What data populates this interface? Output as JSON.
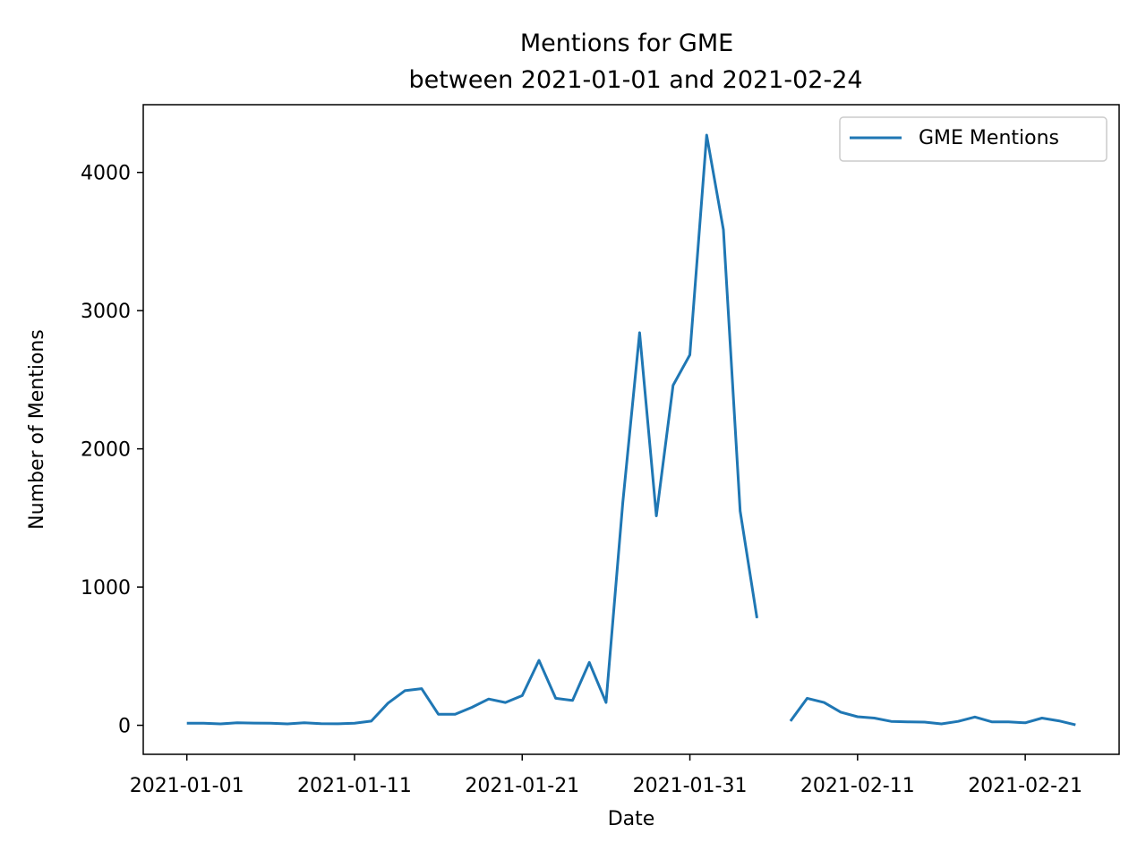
{
  "chart_data": {
    "type": "line",
    "title_line1": "Mentions for GME",
    "title_line2": "between 2021-01-01 and 2021-02-24",
    "xlabel": "Date",
    "ylabel": "Number of Mentions",
    "xlim": [
      -2.6,
      55.6
    ],
    "ylim": [
      -210,
      4490
    ],
    "x_ticks": [
      0,
      10,
      20,
      30,
      40,
      50
    ],
    "x_tick_labels": [
      "2021-01-01",
      "2021-01-11",
      "2021-01-21",
      "2021-01-31",
      "2021-02-11",
      "2021-02-21"
    ],
    "y_ticks": [
      0,
      1000,
      2000,
      3000,
      4000
    ],
    "y_tick_labels": [
      "0",
      "1000",
      "2000",
      "3000",
      "4000"
    ],
    "legend_position": "top-right",
    "colors": {
      "series": "#1f77b4",
      "frame": "#000000",
      "legend_border": "#cccccc"
    },
    "series": [
      {
        "name": "GME Mentions",
        "points": [
          [
            0,
            15
          ],
          [
            1,
            15
          ],
          [
            2,
            10
          ],
          [
            3,
            18
          ],
          [
            4,
            16
          ],
          [
            5,
            15
          ],
          [
            6,
            10
          ],
          [
            7,
            18
          ],
          [
            8,
            12
          ],
          [
            9,
            11
          ],
          [
            10,
            15
          ],
          [
            11,
            30
          ],
          [
            12,
            160
          ],
          [
            13,
            250
          ],
          [
            14,
            265
          ],
          [
            15,
            80
          ],
          [
            16,
            80
          ],
          [
            17,
            130
          ],
          [
            18,
            190
          ],
          [
            19,
            165
          ],
          [
            20,
            215
          ],
          [
            21,
            470
          ],
          [
            22,
            195
          ],
          [
            23,
            180
          ],
          [
            24,
            455
          ],
          [
            25,
            165
          ],
          [
            26,
            1610
          ],
          [
            27,
            2840
          ],
          [
            28,
            1515
          ],
          [
            29,
            2460
          ],
          [
            30,
            2680
          ],
          [
            31,
            4270
          ],
          [
            32,
            3585
          ],
          [
            33,
            1550
          ],
          [
            34,
            775
          ],
          null,
          [
            36,
            30
          ],
          [
            37,
            195
          ],
          [
            38,
            165
          ],
          [
            39,
            95
          ],
          [
            40,
            62
          ],
          [
            41,
            52
          ],
          [
            42,
            28
          ],
          [
            43,
            25
          ],
          [
            44,
            23
          ],
          [
            45,
            10
          ],
          [
            46,
            28
          ],
          [
            47,
            60
          ],
          [
            48,
            25
          ],
          [
            49,
            25
          ],
          [
            50,
            18
          ],
          [
            51,
            52
          ],
          [
            52,
            32
          ],
          [
            53,
            3
          ]
        ]
      }
    ]
  }
}
